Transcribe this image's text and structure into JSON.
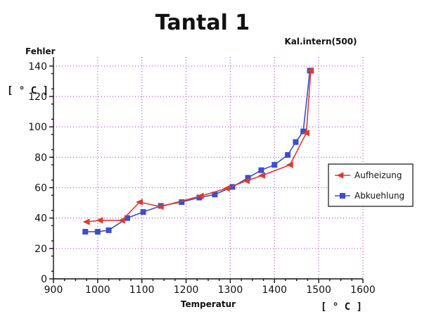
{
  "chart_data": {
    "type": "line",
    "title": "Tantal 1",
    "annotation": "Kal.intern(500)",
    "ylabel": "Fehler",
    "yunit": "[ ° C ]",
    "xlabel": "Temperatur",
    "xunit": "[ ° C ]",
    "xlim": [
      900,
      1600
    ],
    "ylim": [
      0,
      145
    ],
    "xticks": [
      "900",
      "1000",
      "1100",
      "1200",
      "1300",
      "1400",
      "1500",
      "1600"
    ],
    "yticks": [
      "0",
      "20",
      "40",
      "60",
      "80",
      "100",
      "120",
      "140"
    ],
    "grid": true,
    "legend_position": "right",
    "series": [
      {
        "name": "Aufheizung",
        "color": "#e03a2e",
        "marker": "triangle-left",
        "x": [
          975,
          1005,
          1055,
          1095,
          1142,
          1233,
          1292,
          1337,
          1372,
          1435,
          1472,
          1482
        ],
        "y": [
          37.5,
          38.5,
          38.5,
          50.5,
          47.5,
          54.5,
          59.5,
          64.5,
          68,
          75,
          96,
          137
        ]
      },
      {
        "name": "Abkuehlung",
        "color": "#3a4fcf",
        "marker": "square",
        "x": [
          972,
          1000,
          1025,
          1067,
          1103,
          1143,
          1190,
          1230,
          1265,
          1305,
          1340,
          1370,
          1400,
          1430,
          1448,
          1465,
          1480
        ],
        "y": [
          31,
          31,
          32,
          40,
          44,
          48,
          50.5,
          53.5,
          55.5,
          60.5,
          66.5,
          71.5,
          75,
          81.5,
          90,
          97,
          137
        ]
      }
    ]
  }
}
